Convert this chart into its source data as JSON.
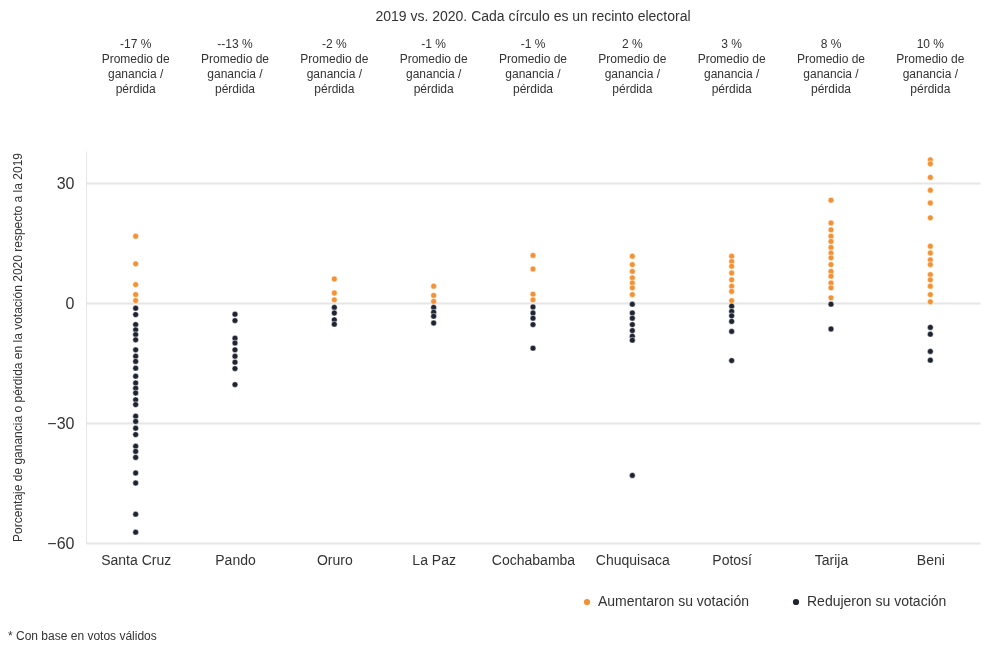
{
  "chart_data": {
    "type": "scatter",
    "title": "2019 vs. 2020. Cada círculo es un recinto electoral",
    "ylabel": "Porcentaje de ganancia o pérdida en la votación 2020 respecto a la 2019",
    "categories": [
      "Santa Cruz",
      "Pando",
      "Oruro",
      "La Paz",
      "Cochabamba",
      "Chuquisaca",
      "Potosí",
      "Tarija",
      "Beni"
    ],
    "ylim": [
      -60,
      38
    ],
    "yticks": [
      -60,
      -30,
      0,
      30
    ],
    "grid": "y",
    "legend": "bottom right",
    "marker": "circle",
    "annotations": [
      "-17 %\nPromedio de\nganancia /\npérdida",
      "--13 %\nPromedio de\nganancia /\npérdida",
      "-2 %\nPromedio de\nganancia /\npérdida",
      "-1 %\nPromedio de\nganancia /\npérdida",
      "-1 %\nPromedio de\nganancia /\npérdida",
      "2 %\nPromedio de\nganancia /\npérdida",
      "3 %\nPromedio de\nganancia /\npérdida",
      "8 %\nPromedio de\nganancia /\npérdida",
      "10 %\nPromedio de\nganancia /\npérdida",
      "* Con base en votos válidos"
    ],
    "series": [
      {
        "name": "Aumentaron su votación",
        "color": "#f39234",
        "x": [
          "Santa Cruz",
          "Santa Cruz",
          "Santa Cruz",
          "Santa Cruz",
          "Santa Cruz",
          "Oruro",
          "Oruro",
          "Oruro",
          "La Paz",
          "La Paz",
          "La Paz",
          "Cochabamba",
          "Cochabamba",
          "Cochabamba",
          "Cochabamba",
          "Chuquisaca",
          "Chuquisaca",
          "Chuquisaca",
          "Chuquisaca",
          "Chuquisaca",
          "Chuquisaca",
          "Chuquisaca",
          "Potosí",
          "Potosí",
          "Potosí",
          "Potosí",
          "Potosí",
          "Potosí",
          "Potosí",
          "Potosí",
          "Tarija",
          "Tarija",
          "Tarija",
          "Tarija",
          "Tarija",
          "Tarija",
          "Tarija",
          "Tarija",
          "Tarija",
          "Tarija",
          "Tarija",
          "Tarija",
          "Tarija",
          "Tarija",
          "Beni",
          "Beni",
          "Beni",
          "Beni",
          "Beni",
          "Beni",
          "Beni",
          "Beni",
          "Beni",
          "Beni",
          "Beni",
          "Beni",
          "Beni",
          "Beni",
          "Beni"
        ],
        "values": [
          16.7,
          9.8,
          4.6,
          2.1,
          0.6,
          6,
          2.5,
          0.8,
          4.2,
          1.9,
          0.4,
          11.9,
          8.5,
          2.2,
          0.8,
          11.7,
          9.6,
          7.9,
          6.3,
          5,
          3.8,
          2.1,
          11.7,
          10.4,
          9.2,
          7.5,
          5.8,
          4.2,
          2.9,
          0.6,
          25.7,
          20,
          18.3,
          16.7,
          15.4,
          13.9,
          12.5,
          11.3,
          9.6,
          7.9,
          6.7,
          5,
          3.8,
          1.3,
          35.8,
          34.8,
          31.4,
          28.2,
          25,
          21.3,
          14.2,
          12.5,
          10.8,
          9.6,
          7.1,
          5.8,
          4.2,
          2.1,
          0.3
        ]
      },
      {
        "name": "Redujeron su votación",
        "color": "#1f2433",
        "x": [
          "Santa Cruz",
          "Santa Cruz",
          "Santa Cruz",
          "Santa Cruz",
          "Santa Cruz",
          "Santa Cruz",
          "Santa Cruz",
          "Santa Cruz",
          "Santa Cruz",
          "Santa Cruz",
          "Santa Cruz",
          "Santa Cruz",
          "Santa Cruz",
          "Santa Cruz",
          "Santa Cruz",
          "Santa Cruz",
          "Santa Cruz",
          "Santa Cruz",
          "Santa Cruz",
          "Santa Cruz",
          "Santa Cruz",
          "Santa Cruz",
          "Santa Cruz",
          "Santa Cruz",
          "Santa Cruz",
          "Santa Cruz",
          "Santa Cruz",
          "Pando",
          "Pando",
          "Pando",
          "Pando",
          "Pando",
          "Pando",
          "Pando",
          "Pando",
          "Pando",
          "Oruro",
          "Oruro",
          "Oruro",
          "Oruro",
          "La Paz",
          "La Paz",
          "La Paz",
          "La Paz",
          "Cochabamba",
          "Cochabamba",
          "Cochabamba",
          "Cochabamba",
          "Cochabamba",
          "Chuquisaca",
          "Chuquisaca",
          "Chuquisaca",
          "Chuquisaca",
          "Chuquisaca",
          "Chuquisaca",
          "Chuquisaca",
          "Chuquisaca",
          "Potosí",
          "Potosí",
          "Potosí",
          "Potosí",
          "Potosí",
          "Potosí",
          "Tarija",
          "Tarija",
          "Beni",
          "Beni",
          "Beni",
          "Beni"
        ],
        "values": [
          -1.3,
          -2.9,
          -5.4,
          -6.7,
          -7.9,
          -9.2,
          -11.7,
          -13.3,
          -14.6,
          -16.3,
          -18.3,
          -20,
          -21.3,
          -22.5,
          -24.2,
          -25.4,
          -28.3,
          -29.6,
          -31.3,
          -32.9,
          -35.8,
          -37.1,
          -38.6,
          -42.5,
          -45,
          -52.8,
          -57.3,
          -2.8,
          -4.4,
          -8.8,
          -10,
          -11.7,
          -13.3,
          -14.8,
          -16.4,
          -20.4,
          -1.1,
          -2.5,
          -4.2,
          -5.3,
          -1.1,
          -2.3,
          -3.3,
          -5,
          -1,
          -2.5,
          -3.8,
          -5.4,
          -11.3,
          -0.3,
          -2.5,
          -3.8,
          -5.4,
          -6.9,
          -8.3,
          -9.3,
          -43.1,
          -0.8,
          -2.1,
          -3.2,
          -4.6,
          -7.1,
          -14.4,
          -0.3,
          -6.5,
          -6.1,
          -7.8,
          -12.1,
          -14.3
        ]
      }
    ]
  }
}
